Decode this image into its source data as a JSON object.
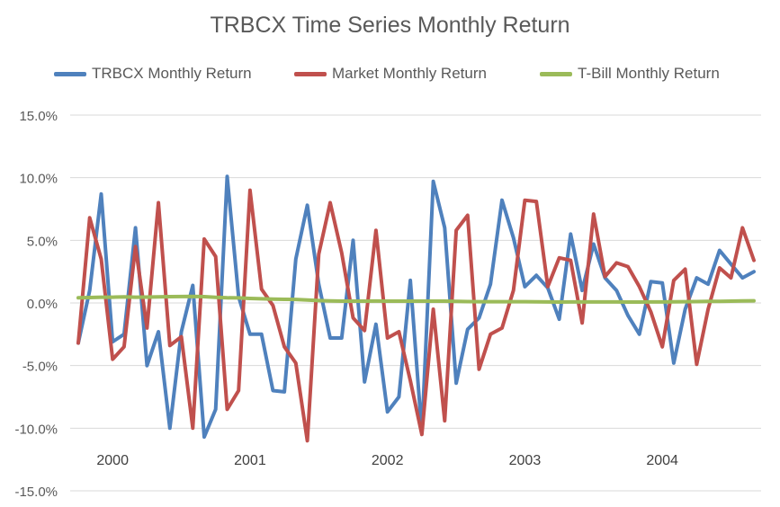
{
  "chart_data": {
    "type": "line",
    "title": "TRBCX Time Series Monthly Return",
    "xlabel": "",
    "ylabel": "",
    "ylim": [
      -0.15,
      0.15
    ],
    "yticks": [
      "15.0%",
      "10.0%",
      "5.0%",
      "0.0%",
      "-5.0%",
      "-10.0%",
      "-15.0%"
    ],
    "yticks_values": [
      0.15,
      0.1,
      0.05,
      0.0,
      -0.05,
      -0.1,
      -0.15
    ],
    "year_labels": [
      "2000",
      "2001",
      "2002",
      "2003",
      "2004"
    ],
    "grid": true,
    "legend_position": "top",
    "x": [
      "2000-01",
      "2000-02",
      "2000-03",
      "2000-04",
      "2000-05",
      "2000-06",
      "2000-07",
      "2000-08",
      "2000-09",
      "2000-10",
      "2000-11",
      "2000-12",
      "2001-01",
      "2001-02",
      "2001-03",
      "2001-04",
      "2001-05",
      "2001-06",
      "2001-07",
      "2001-08",
      "2001-09",
      "2001-10",
      "2001-11",
      "2001-12",
      "2002-01",
      "2002-02",
      "2002-03",
      "2002-04",
      "2002-05",
      "2002-06",
      "2002-07",
      "2002-08",
      "2002-09",
      "2002-10",
      "2002-11",
      "2002-12",
      "2003-01",
      "2003-02",
      "2003-03",
      "2003-04",
      "2003-05",
      "2003-06",
      "2003-07",
      "2003-08",
      "2003-09",
      "2003-10",
      "2003-11",
      "2003-12",
      "2004-01",
      "2004-02",
      "2004-03",
      "2004-04",
      "2004-05",
      "2004-06",
      "2004-07",
      "2004-08",
      "2004-09",
      "2004-10",
      "2004-11",
      "2004-12"
    ],
    "series": [
      {
        "name": "TRBCX Monthly Return",
        "color": "#4F81BD",
        "values": [
          -0.032,
          0.01,
          0.087,
          -0.031,
          -0.025,
          0.06,
          -0.05,
          -0.023,
          -0.1,
          -0.023,
          0.014,
          -0.107,
          -0.085,
          0.101,
          0.005,
          -0.025,
          -0.025,
          -0.07,
          -0.071,
          0.035,
          0.078,
          0.015,
          -0.028,
          -0.028,
          0.05,
          -0.063,
          -0.017,
          -0.087,
          -0.075,
          0.018,
          -0.104,
          0.097,
          0.06,
          -0.064,
          -0.021,
          -0.012,
          0.015,
          0.082,
          0.052,
          0.013,
          0.022,
          0.012,
          -0.013,
          0.055,
          0.01,
          0.047,
          0.02,
          0.01,
          -0.01,
          -0.025,
          0.017,
          0.016,
          -0.048,
          -0.005,
          0.02,
          0.015,
          0.042,
          0.031,
          0.02,
          0.025
        ]
      },
      {
        "name": "Market Monthly Return",
        "color": "#C0504D",
        "values": [
          -0.032,
          0.068,
          0.035,
          -0.045,
          -0.035,
          0.045,
          -0.02,
          0.08,
          -0.034,
          -0.027,
          -0.1,
          0.051,
          0.037,
          -0.085,
          -0.07,
          0.09,
          0.011,
          -0.002,
          -0.035,
          -0.048,
          -0.11,
          0.039,
          0.08,
          0.04,
          -0.012,
          -0.022,
          0.058,
          -0.028,
          -0.023,
          -0.062,
          -0.105,
          -0.005,
          -0.094,
          0.058,
          0.07,
          -0.053,
          -0.025,
          -0.02,
          0.01,
          0.082,
          0.081,
          0.013,
          0.036,
          0.034,
          -0.016,
          0.071,
          0.021,
          0.032,
          0.029,
          0.013,
          -0.007,
          -0.035,
          0.018,
          0.027,
          -0.049,
          -0.005,
          0.028,
          0.02,
          0.06,
          0.034
        ]
      },
      {
        "name": "T-Bill Monthly Return",
        "color": "#9BBB59",
        "values": [
          0.0041,
          0.0043,
          0.0046,
          0.0046,
          0.0048,
          0.0046,
          0.0047,
          0.0049,
          0.005,
          0.0051,
          0.0052,
          0.005,
          0.0045,
          0.0041,
          0.004,
          0.0036,
          0.0033,
          0.003,
          0.0029,
          0.0028,
          0.0023,
          0.0019,
          0.0016,
          0.0014,
          0.0014,
          0.0014,
          0.0015,
          0.0014,
          0.0014,
          0.0014,
          0.0014,
          0.0014,
          0.0014,
          0.0013,
          0.0011,
          0.001,
          0.001,
          0.001,
          0.001,
          0.001,
          0.0009,
          0.0008,
          0.0007,
          0.0008,
          0.0008,
          0.0008,
          0.0008,
          0.0008,
          0.0007,
          0.0007,
          0.0008,
          0.0008,
          0.0009,
          0.001,
          0.0011,
          0.0012,
          0.0013,
          0.0014,
          0.0016,
          0.0017
        ]
      }
    ]
  }
}
